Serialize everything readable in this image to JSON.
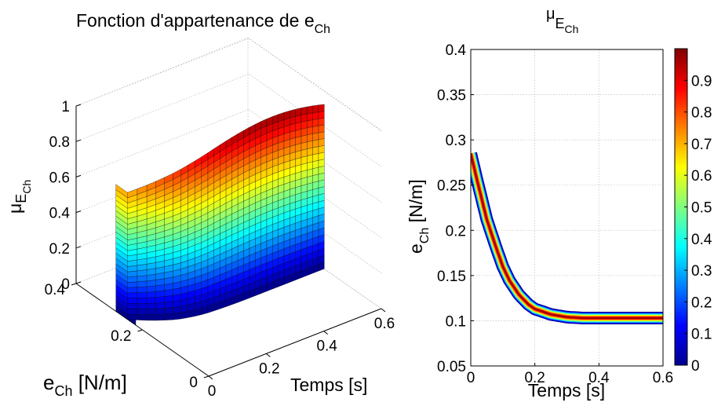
{
  "chart_data": [
    {
      "type": "surface",
      "title": {
        "main": "Fonction d'appartenance de e",
        "sub": "Ch"
      },
      "xlabel": "Temps [s]",
      "ylabel": {
        "main": "e",
        "sub": "Ch",
        "unit": " [N/m]"
      },
      "zlabel": {
        "main": "μ",
        "sub1": "E",
        "sub2": "Ch"
      },
      "xticks": [
        "0",
        "0.2",
        "0.4",
        "0.6"
      ],
      "yticks": [
        "0",
        "0.2",
        "0.4"
      ],
      "zticks": [
        "0",
        "0.2",
        "0.4",
        "0.6",
        "0.8",
        "1"
      ],
      "xlim": [
        0,
        0.6
      ],
      "ylim": [
        0,
        0.4
      ],
      "zlim": [
        0,
        1
      ],
      "colormap": "jet",
      "grid": true
    },
    {
      "type": "heatmap",
      "title": {
        "main": "μ",
        "sub1": "E",
        "sub2": "Ch"
      },
      "xlabel": "Temps [s]",
      "ylabel": {
        "main": "e",
        "sub": "Ch",
        "unit": " [N/m]"
      },
      "xticks": [
        "0",
        "0.2",
        "0.4",
        "0.6"
      ],
      "yticks": [
        "0.05",
        "0.1",
        "0.15",
        "0.2",
        "0.25",
        "0.3",
        "0.35",
        "0.4"
      ],
      "xlim": [
        0,
        0.6
      ],
      "ylim": [
        0.05,
        0.4
      ],
      "colorbar": {
        "ticks": [
          "0",
          "0.1",
          "0.2",
          "0.3",
          "0.4",
          "0.5",
          "0.6",
          "0.7",
          "0.8",
          "0.9"
        ],
        "range": [
          0,
          1
        ],
        "colormap": "jet"
      },
      "ridge": {
        "x": [
          0,
          0.02,
          0.05,
          0.08,
          0.1,
          0.12,
          0.15,
          0.18,
          0.2,
          0.25,
          0.3,
          0.35,
          0.4,
          0.45,
          0.5,
          0.55,
          0.6
        ],
        "y": [
          0.285,
          0.255,
          0.212,
          0.18,
          0.16,
          0.145,
          0.129,
          0.118,
          0.113,
          0.107,
          0.104,
          0.103,
          0.103,
          0.103,
          0.103,
          0.103,
          0.103
        ]
      },
      "grid": true
    }
  ]
}
